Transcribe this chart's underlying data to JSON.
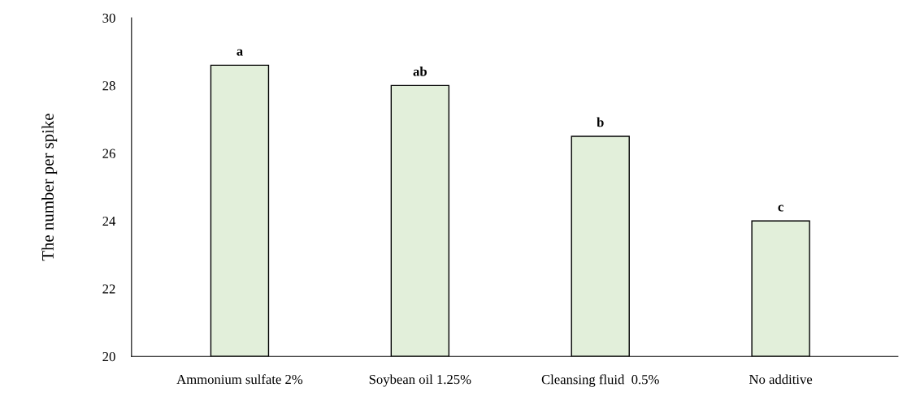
{
  "chart_data": {
    "type": "bar",
    "ylabel": "The number per spike",
    "categories": [
      "Ammonium sulfate 2%",
      "Soybean oil 1.25%",
      "Cleansing fluid  0.5%",
      "No additive"
    ],
    "values": [
      28.6,
      28.0,
      26.5,
      24.0
    ],
    "color": "#e2efda",
    "ylim": [
      20,
      30
    ],
    "yticks": [
      20,
      22,
      24,
      26,
      28,
      30
    ],
    "grid": false,
    "legend": false,
    "annotations": [
      {
        "text": "a",
        "x": "Ammonium sulfate 2%",
        "y": 28.6
      },
      {
        "text": "ab",
        "x": "Soybean oil 1.25%",
        "y": 28.0
      },
      {
        "text": "b",
        "x": "Cleansing fluid  0.5%",
        "y": 26.5
      },
      {
        "text": "c",
        "x": "No additive",
        "y": 24.0
      }
    ]
  }
}
